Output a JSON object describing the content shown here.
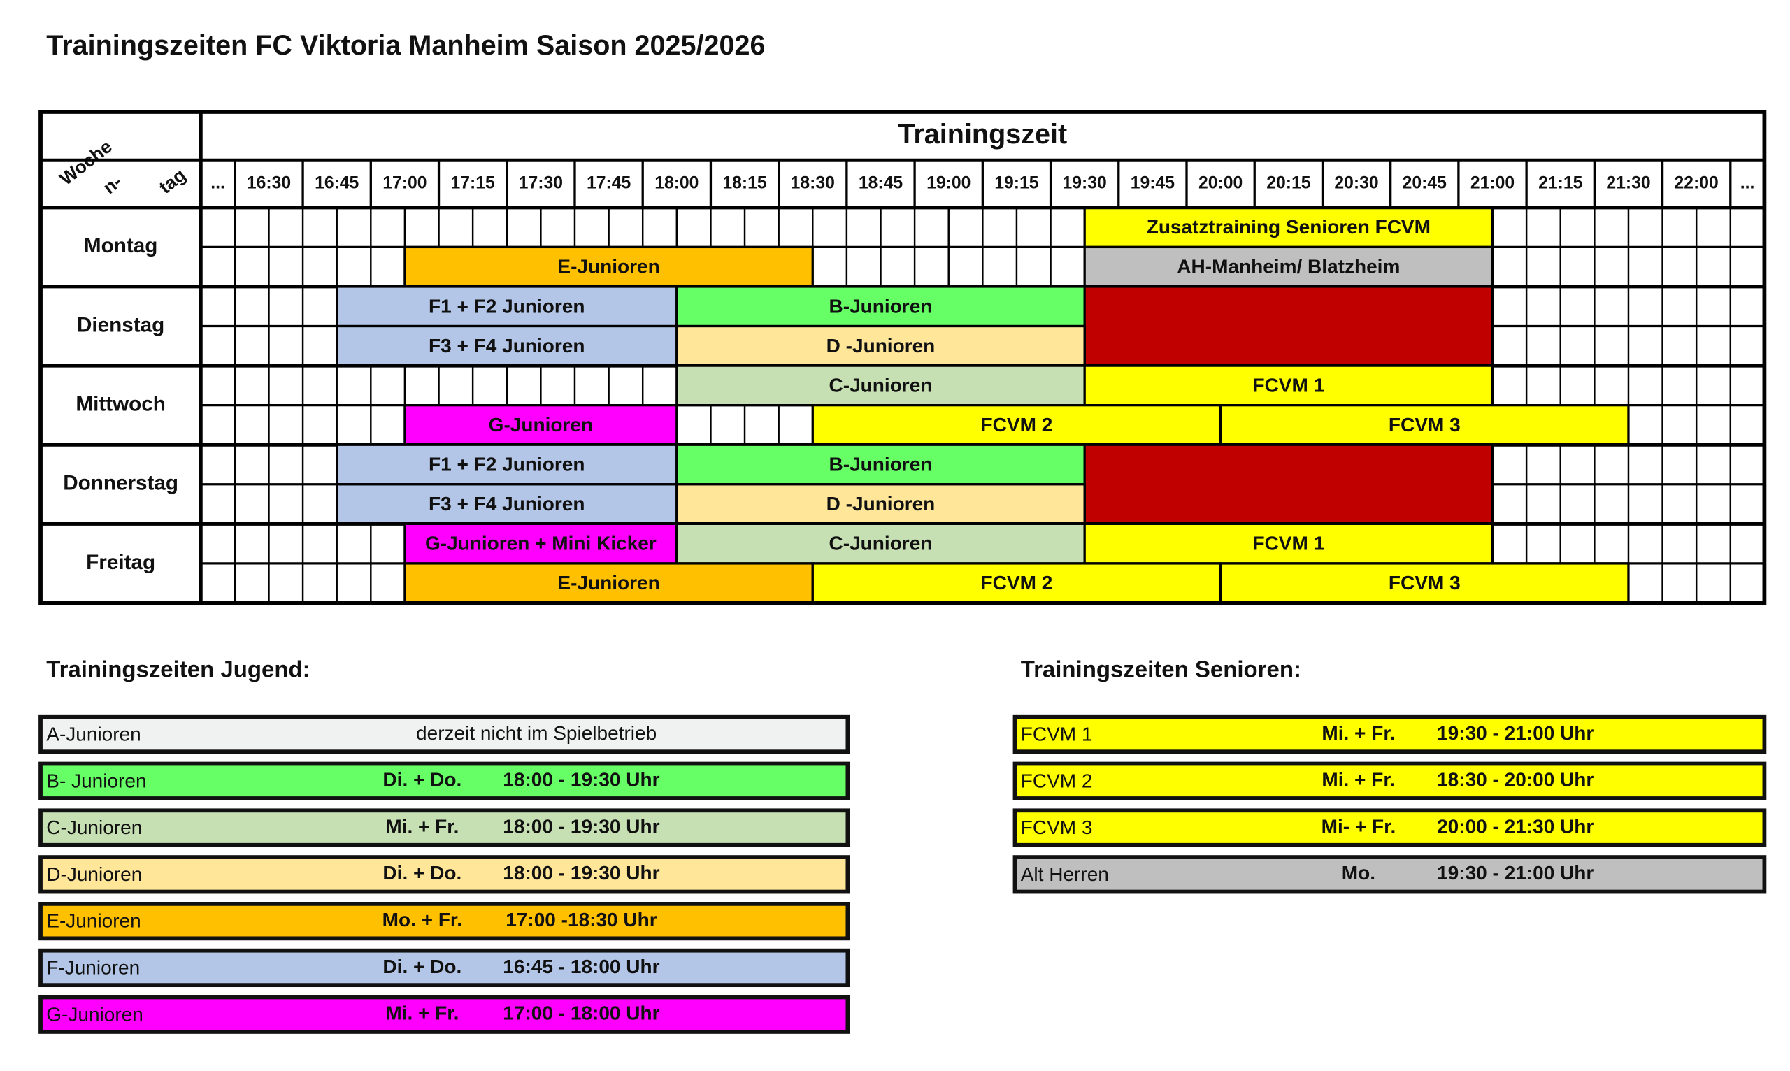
{
  "title": "Trainingszeiten FC Viktoria Manheim Saison 2025/2026",
  "schedule": {
    "corner": [
      "Woche",
      "n-",
      "tag"
    ],
    "header": "Trainingszeit",
    "columns": [
      "...",
      "16:30",
      "16:45",
      "17:00",
      "17:15",
      "17:30",
      "17:45",
      "18:00",
      "18:15",
      "18:30",
      "18:45",
      "19:00",
      "19:15",
      "19:30",
      "19:45",
      "20:00",
      "20:15",
      "20:30",
      "20:45",
      "21:00",
      "21:15",
      "21:30",
      "22:00",
      "..."
    ],
    "days": [
      {
        "name": "Montag",
        "rows": [
          [
            {
              "label": "Zusatztraining Senioren FCVM",
              "start": "19:30",
              "end": "21:00",
              "color": "#ffff00"
            }
          ],
          [
            {
              "label": "E-Junioren",
              "start": "17:00",
              "end": "18:30",
              "color": "#ffc000"
            },
            {
              "label": "AH-Manheim/ Blatzheim",
              "start": "19:30",
              "end": "21:00",
              "color": "#bfbfbf"
            }
          ]
        ]
      },
      {
        "name": "Dienstag",
        "rows": [
          [
            {
              "label": "F1 + F2 Junioren",
              "start": "16:45",
              "end": "18:00",
              "color": "#b4c6e7"
            },
            {
              "label": "B-Junioren",
              "start": "18:00",
              "end": "19:30",
              "color": "#66ff66"
            },
            {
              "start": "19:30",
              "end": "21:00",
              "color": "#c00000",
              "span_rows": 2
            }
          ],
          [
            {
              "label": "F3 + F4 Junioren",
              "start": "16:45",
              "end": "18:00",
              "color": "#b4c6e7"
            },
            {
              "label": "D -Junioren",
              "start": "18:00",
              "end": "19:30",
              "color": "#ffe699"
            }
          ]
        ]
      },
      {
        "name": "Mittwoch",
        "rows": [
          [
            {
              "label": "C-Junioren",
              "start": "18:00",
              "end": "19:30",
              "color": "#c6e0b4"
            },
            {
              "label": "FCVM 1",
              "start": "19:30",
              "end": "21:00",
              "color": "#ffff00"
            }
          ],
          [
            {
              "label": "G-Junioren",
              "start": "17:00",
              "end": "18:00",
              "color": "#ff00ff"
            },
            {
              "label": "FCVM 2",
              "start": "18:30",
              "end": "20:00",
              "color": "#ffff00"
            },
            {
              "label": "FCVM 3",
              "start": "20:00",
              "end": "21:30",
              "color": "#ffff00"
            }
          ]
        ]
      },
      {
        "name": "Donnerstag",
        "rows": [
          [
            {
              "label": "F1 + F2 Junioren",
              "start": "16:45",
              "end": "18:00",
              "color": "#b4c6e7"
            },
            {
              "label": "B-Junioren",
              "start": "18:00",
              "end": "19:30",
              "color": "#66ff66"
            },
            {
              "start": "19:30",
              "end": "21:00",
              "color": "#c00000",
              "span_rows": 2
            }
          ],
          [
            {
              "label": "F3 + F4 Junioren",
              "start": "16:45",
              "end": "18:00",
              "color": "#b4c6e7"
            },
            {
              "label": "D -Junioren",
              "start": "18:00",
              "end": "19:30",
              "color": "#ffe699"
            }
          ]
        ]
      },
      {
        "name": "Freitag",
        "rows": [
          [
            {
              "label": "G-Junioren + Mini Kicker",
              "start": "17:00",
              "end": "18:00",
              "color": "#ff00ff"
            },
            {
              "label": "C-Junioren",
              "start": "18:00",
              "end": "19:30",
              "color": "#c6e0b4"
            },
            {
              "label": "FCVM 1",
              "start": "19:30",
              "end": "21:00",
              "color": "#ffff00"
            }
          ],
          [
            {
              "label": "E-Junioren",
              "start": "17:00",
              "end": "18:30",
              "color": "#ffc000"
            },
            {
              "label": "FCVM 2",
              "start": "18:30",
              "end": "20:00",
              "color": "#ffff00"
            },
            {
              "label": "FCVM 3",
              "start": "20:00",
              "end": "21:30",
              "color": "#ffff00"
            }
          ]
        ]
      }
    ]
  },
  "youth": {
    "title": "Trainingszeiten Jugend:",
    "rows": [
      {
        "name": "A-Junioren",
        "note": "derzeit nicht im Spielbetrieb",
        "color": "#f0f2f2"
      },
      {
        "name": "B- Junioren",
        "days": "Di. + Do.",
        "time": "18:00 - 19:30 Uhr",
        "color": "#66ff66"
      },
      {
        "name": "C-Junioren",
        "days": "Mi. + Fr.",
        "time": "18:00 - 19:30 Uhr",
        "color": "#c6e0b4"
      },
      {
        "name": "D-Junioren",
        "days": "Di. + Do.",
        "time": "18:00 - 19:30 Uhr",
        "color": "#ffe699"
      },
      {
        "name": "E-Junioren",
        "days": "Mo. + Fr.",
        "time": "17:00 -18:30 Uhr",
        "color": "#ffc000"
      },
      {
        "name": "F-Junioren",
        "days": "Di. + Do.",
        "time": "16:45 - 18:00 Uhr",
        "color": "#b4c6e7"
      },
      {
        "name": "G-Junioren",
        "days": "Mi. + Fr.",
        "time": "17:00 - 18:00 Uhr",
        "color": "#ff00ff"
      }
    ]
  },
  "seniors": {
    "title": "Trainingszeiten Senioren:",
    "rows": [
      {
        "name": "FCVM 1",
        "days": "Mi. + Fr.",
        "time": "19:30 - 21:00 Uhr",
        "color": "#ffff00"
      },
      {
        "name": "FCVM 2",
        "days": "Mi. + Fr.",
        "time": "18:30 - 20:00 Uhr",
        "color": "#ffff00"
      },
      {
        "name": "FCVM 3",
        "days": "Mi- + Fr.",
        "time": "20:00 - 21:30 Uhr",
        "color": "#ffff00"
      },
      {
        "name": "Alt Herren",
        "days": "Mo.",
        "time": "19:30 - 21:00 Uhr",
        "color": "#bfbfbf"
      }
    ]
  }
}
